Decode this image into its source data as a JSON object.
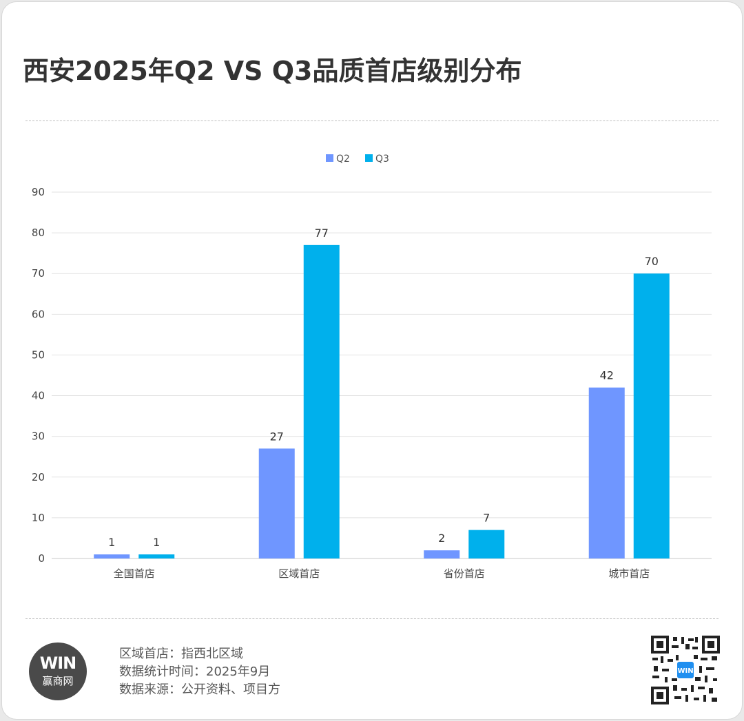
{
  "title": "西安2025年Q2 VS Q3品质首店级别分布",
  "chart_data": {
    "type": "bar",
    "categories": [
      "全国首店",
      "区域首店",
      "省份首店",
      "城市首店"
    ],
    "series": [
      {
        "name": "Q2",
        "values": [
          1,
          27,
          2,
          42
        ],
        "color": "#6f96ff"
      },
      {
        "name": "Q3",
        "values": [
          1,
          77,
          7,
          70
        ],
        "color": "#00b0ec"
      }
    ],
    "ylim": [
      0,
      90
    ],
    "yticks": [
      0,
      10,
      20,
      30,
      40,
      50,
      60,
      70,
      80,
      90
    ],
    "legend_position": "top-center",
    "grid": true,
    "data_labels": true
  },
  "footer": {
    "line1": "区域首店：指西北区域",
    "line2": "数据统计时间：2025年9月",
    "line3": "数据来源：公开资料、项目方"
  },
  "logo": {
    "mark": "WIN",
    "name": "赢商网"
  },
  "qr_icon": "qr-code-icon"
}
